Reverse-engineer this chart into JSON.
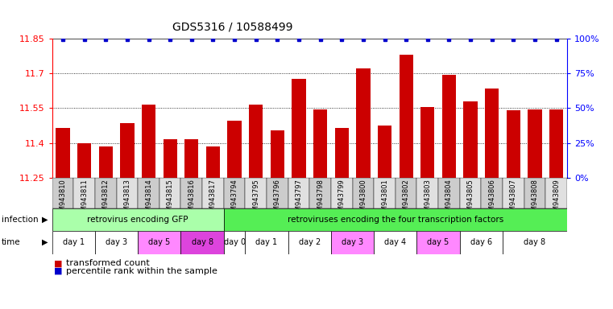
{
  "title": "GDS5316 / 10588499",
  "samples": [
    "GSM943810",
    "GSM943811",
    "GSM943812",
    "GSM943813",
    "GSM943814",
    "GSM943815",
    "GSM943816",
    "GSM943817",
    "GSM943794",
    "GSM943795",
    "GSM943796",
    "GSM943797",
    "GSM943798",
    "GSM943799",
    "GSM943800",
    "GSM943801",
    "GSM943802",
    "GSM943803",
    "GSM943804",
    "GSM943805",
    "GSM943806",
    "GSM943807",
    "GSM943808",
    "GSM943809"
  ],
  "bar_values": [
    11.465,
    11.4,
    11.385,
    11.485,
    11.565,
    11.415,
    11.415,
    11.385,
    11.495,
    11.565,
    11.455,
    11.675,
    11.545,
    11.465,
    11.72,
    11.475,
    11.78,
    11.555,
    11.695,
    11.58,
    11.635,
    11.54,
    11.545,
    11.545
  ],
  "y_min": 11.25,
  "y_max": 11.85,
  "y_ticks": [
    11.25,
    11.4,
    11.55,
    11.7,
    11.85
  ],
  "right_y_ticks": [
    0,
    25,
    50,
    75,
    100
  ],
  "bar_color": "#CC0000",
  "dot_color": "#0000CC",
  "dot_size": 4,
  "infection_group1_label": "retrovirus encoding GFP",
  "infection_group2_label": "retroviruses encoding the four transcription factors",
  "infection_color1": "#AAFFAA",
  "infection_color2": "#55EE55",
  "time_spans": [
    [
      0,
      1,
      "day 1",
      "#FFFFFF"
    ],
    [
      2,
      3,
      "day 3",
      "#FFFFFF"
    ],
    [
      4,
      5,
      "day 5",
      "#FF88FF"
    ],
    [
      6,
      7,
      "day 8",
      "#DD44DD"
    ],
    [
      8,
      8,
      "day 0",
      "#FFFFFF"
    ],
    [
      9,
      10,
      "day 1",
      "#FFFFFF"
    ],
    [
      11,
      12,
      "day 2",
      "#FFFFFF"
    ],
    [
      13,
      14,
      "day 3",
      "#FF88FF"
    ],
    [
      15,
      16,
      "day 4",
      "#FFFFFF"
    ],
    [
      17,
      18,
      "day 5",
      "#FF88FF"
    ],
    [
      19,
      20,
      "day 6",
      "#FFFFFF"
    ],
    [
      21,
      23,
      "day 8",
      "#FFFFFF"
    ]
  ],
  "xtick_colors": [
    "#CCCCCC",
    "#DDDDDD",
    "#CCCCCC",
    "#DDDDDD",
    "#CCCCCC",
    "#DDDDDD",
    "#CCCCCC",
    "#DDDDDD",
    "#CCCCCC",
    "#DDDDDD",
    "#CCCCCC",
    "#DDDDDD",
    "#CCCCCC",
    "#DDDDDD",
    "#CCCCCC",
    "#DDDDDD",
    "#CCCCCC",
    "#DDDDDD",
    "#CCCCCC",
    "#DDDDDD",
    "#CCCCCC",
    "#DDDDDD",
    "#CCCCCC",
    "#DDDDDD"
  ]
}
